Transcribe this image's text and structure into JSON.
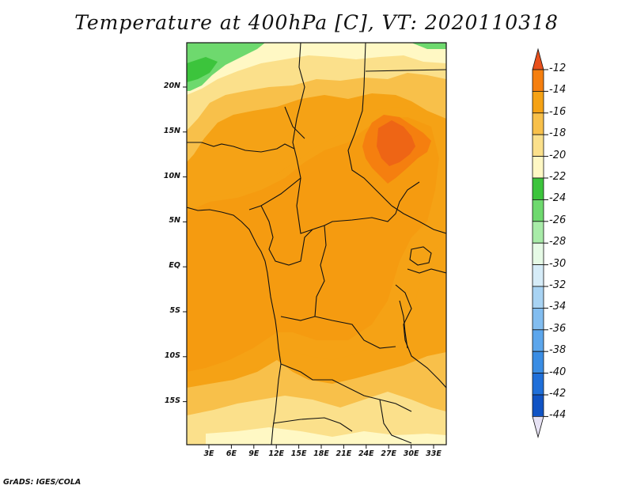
{
  "title": "Temperature at 400hPa [C], VT: 2020110318",
  "footer": "GrADS: IGES/COLA",
  "map": {
    "lat_labels": [
      "20N",
      "15N",
      "10N",
      "5N",
      "EQ",
      "5S",
      "10S",
      "15S"
    ],
    "lon_labels": [
      "3E",
      "6E",
      "9E",
      "12E",
      "15E",
      "18E",
      "21E",
      "24E",
      "27E",
      "30E",
      "33E"
    ]
  },
  "colorbar": {
    "labels": [
      "-12",
      "-14",
      "-16",
      "-18",
      "-20",
      "-22",
      "-24",
      "-26",
      "-28",
      "-30",
      "-32",
      "-34",
      "-36",
      "-38",
      "-40",
      "-42",
      "-44"
    ],
    "colors": [
      "#e8501c",
      "#f57f0f",
      "#f5a215",
      "#f8c04a",
      "#fbe08b",
      "#fff8c4",
      "#3cc43c",
      "#6ed96e",
      "#a8eba8",
      "#e6fae6",
      "#d6ecf8",
      "#a8d3f3",
      "#82bdf0",
      "#5ca6ec",
      "#3a8de4",
      "#1f6fd9",
      "#1053c4",
      "#0c3aa8",
      "#0b1f7a",
      "#e7e2f4"
    ]
  }
}
